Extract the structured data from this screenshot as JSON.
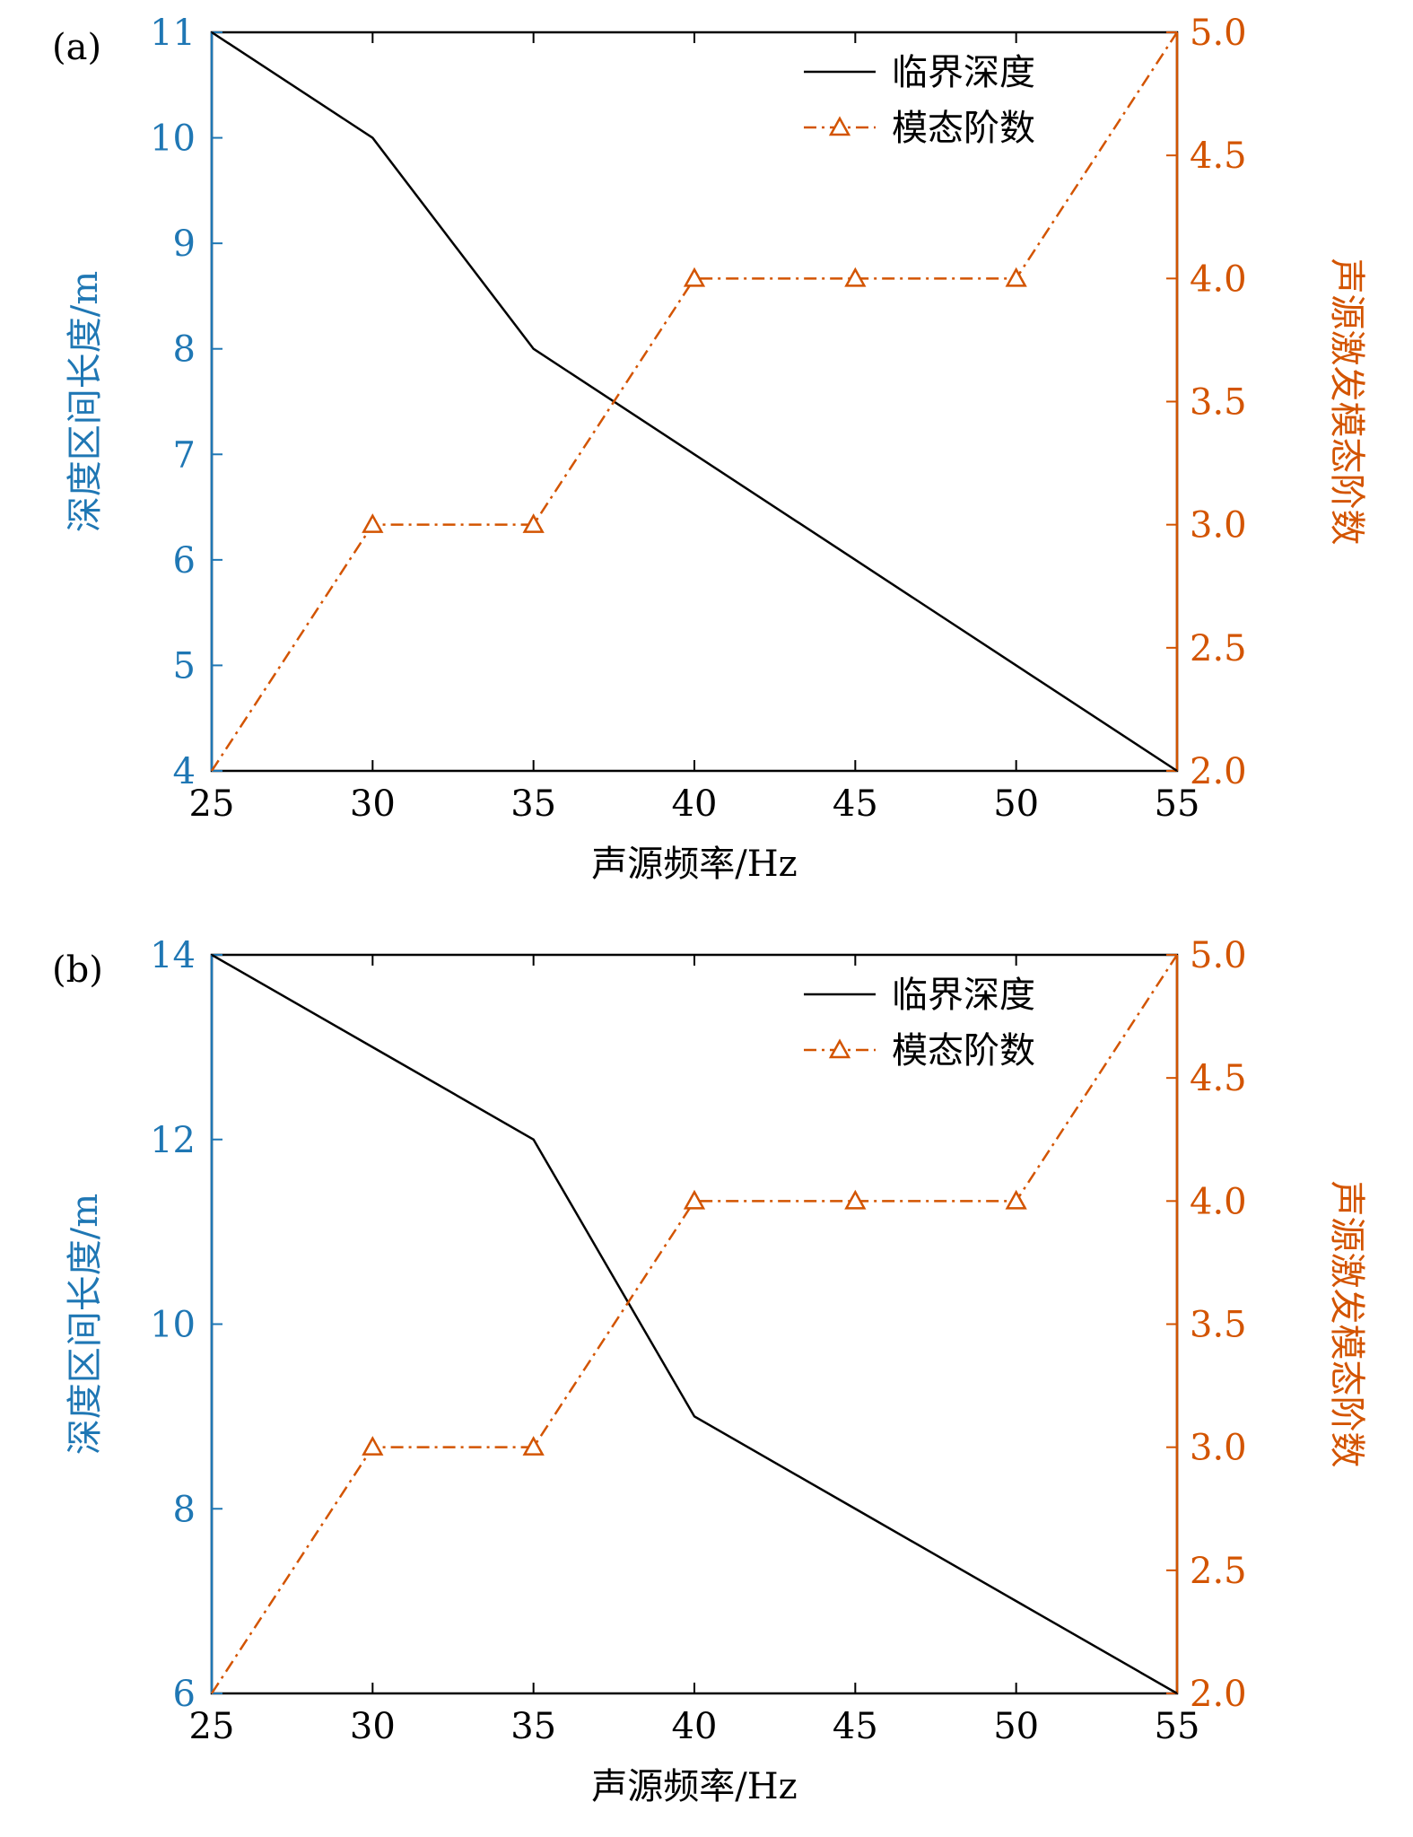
{
  "colors": {
    "left_axis": "#1f77b4",
    "right_axis": "#d35400",
    "depth_line": "#000000",
    "mode_line": "#d35400",
    "frame": "#000000"
  },
  "chart_data": [
    {
      "type": "line",
      "panel_label": "(a)",
      "x": [
        25,
        30,
        35,
        40,
        45,
        50,
        55
      ],
      "xlabel": "声源频率/Hz",
      "xlim": [
        25,
        55
      ],
      "xticks": [
        "25",
        "30",
        "35",
        "40",
        "45",
        "50",
        "55"
      ],
      "ylabel_left": "深度区间长度/m",
      "ylim_left": [
        4,
        11
      ],
      "yticks_left": [
        "4",
        "5",
        "6",
        "7",
        "8",
        "9",
        "10",
        "11"
      ],
      "ylabel_right": "声源激发模态阶数",
      "ylim_right": [
        2.0,
        5.0
      ],
      "yticks_right": [
        "2.0",
        "2.5",
        "3.0",
        "3.5",
        "4.0",
        "4.5",
        "5.0"
      ],
      "legend_position": "top-right",
      "grid": false,
      "series": [
        {
          "name": "临界深度",
          "axis": "left",
          "style": "solid",
          "marker": "none",
          "values": [
            11,
            10,
            8,
            7,
            6,
            5,
            4
          ]
        },
        {
          "name": "模态阶数",
          "axis": "right",
          "style": "dash-dot",
          "marker": "triangle",
          "values": [
            2,
            3,
            3,
            4,
            4,
            4,
            5
          ]
        }
      ]
    },
    {
      "type": "line",
      "panel_label": "(b)",
      "x": [
        25,
        30,
        35,
        40,
        45,
        50,
        55
      ],
      "xlabel": "声源频率/Hz",
      "xlim": [
        25,
        55
      ],
      "xticks": [
        "25",
        "30",
        "35",
        "40",
        "45",
        "50",
        "55"
      ],
      "ylabel_left": "深度区间长度/m",
      "ylim_left": [
        6,
        14
      ],
      "yticks_left": [
        "6",
        "8",
        "10",
        "12",
        "14"
      ],
      "ylabel_right": "声源激发模态阶数",
      "ylim_right": [
        2.0,
        5.0
      ],
      "yticks_right": [
        "2.0",
        "2.5",
        "3.0",
        "3.5",
        "4.0",
        "4.5",
        "5.0"
      ],
      "legend_position": "top-right",
      "grid": false,
      "series": [
        {
          "name": "临界深度",
          "axis": "left",
          "style": "solid",
          "marker": "none",
          "values": [
            14,
            13,
            12,
            9,
            8,
            7,
            6
          ]
        },
        {
          "name": "模态阶数",
          "axis": "right",
          "style": "dash-dot",
          "marker": "triangle",
          "values": [
            2,
            3,
            3,
            4,
            4,
            4,
            5
          ]
        }
      ]
    }
  ]
}
